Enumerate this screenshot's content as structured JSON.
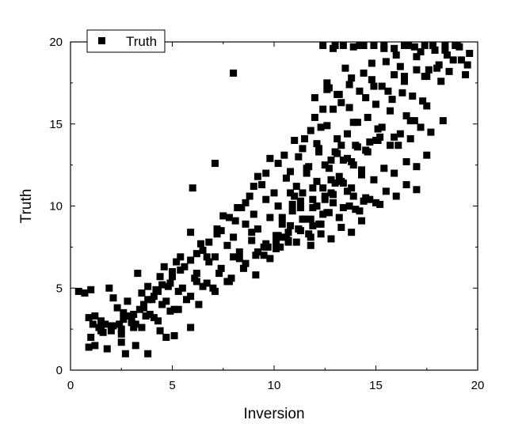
{
  "chart_data": {
    "type": "scatter",
    "title": "",
    "xlabel": "Inversion",
    "ylabel": "Truth",
    "xlim": [
      0,
      20
    ],
    "ylim": [
      0,
      20
    ],
    "xticks": [
      0,
      5,
      10,
      15,
      20
    ],
    "yticks": [
      0,
      5,
      10,
      15,
      20
    ],
    "grid": false,
    "legend_position": "top-left",
    "marker": "square",
    "color": "#000000",
    "series": [
      {
        "name": "Truth",
        "x": [
          0.4,
          0.7,
          0.9,
          1.0,
          1.1,
          1.2,
          1.4,
          1.5,
          1.7,
          1.9,
          2.0,
          2.1,
          2.3,
          2.5,
          2.6,
          2.8,
          3.0,
          3.1,
          3.3,
          3.5,
          3.6,
          3.8,
          4.0,
          4.2,
          4.4,
          4.6,
          4.8,
          5.0,
          5.2,
          5.4,
          5.9,
          6.0,
          8.0,
          7.1,
          5.9,
          5.1,
          4.7,
          2.7,
          3.2,
          3.8,
          1.2,
          0.9,
          1.8,
          2.5,
          4.4,
          5.3,
          6.2,
          6.4,
          6.7,
          7.0,
          7.2,
          7.5,
          7.8,
          8.1,
          8.3,
          8.6,
          8.9,
          9.2,
          9.5,
          9.8,
          10.1,
          10.4,
          10.7,
          11.0,
          11.3,
          11.6,
          11.9,
          12.2,
          12.5,
          12.8,
          13.1,
          13.4,
          13.7,
          14.0,
          14.3,
          14.6,
          14.9,
          15.2,
          15.5,
          15.8,
          16.1,
          16.4,
          16.7,
          17.0,
          17.3,
          17.6,
          17.9,
          18.2,
          18.5,
          18.8,
          19.1,
          19.4,
          19.6,
          12.6,
          13.0,
          13.5,
          14.2,
          14.8,
          15.4,
          16.0,
          16.6,
          17.2,
          17.8,
          18.4,
          19.0,
          19.5,
          12.4,
          12.7,
          13.2,
          13.8,
          14.4,
          15.0,
          15.6,
          16.2,
          16.8,
          17.4,
          18.0,
          11.5,
          12.0,
          12.3,
          12.9,
          13.3,
          13.9,
          14.5,
          15.1,
          15.7,
          16.3,
          16.9,
          17.5,
          10.5,
          11.0,
          11.4,
          11.8,
          12.1,
          12.6,
          13.0,
          13.6,
          14.1,
          14.7,
          15.3,
          15.9,
          16.5,
          9.0,
          9.6,
          10.2,
          10.8,
          11.2,
          11.7,
          12.2,
          12.8,
          13.3,
          13.9,
          14.5,
          15.0,
          8.2,
          8.8,
          9.4,
          10.0,
          10.6,
          11.1,
          11.6,
          12.1,
          12.7,
          13.2,
          13.8,
          14.3,
          7.2,
          7.8,
          8.4,
          9.0,
          9.6,
          10.2,
          10.8,
          11.3,
          11.9,
          12.5,
          13.0,
          13.6,
          6.2,
          6.8,
          7.4,
          8.0,
          8.6,
          9.2,
          9.8,
          10.4,
          10.9,
          11.5,
          12.1,
          12.6,
          5.4,
          5.9,
          6.5,
          7.1,
          7.7,
          8.3,
          8.9,
          9.5,
          10.1,
          10.7,
          11.2,
          11.8,
          4.5,
          5.0,
          5.6,
          6.2,
          6.8,
          7.4,
          8.0,
          8.6,
          9.2,
          9.8,
          10.3,
          3.8,
          4.3,
          4.9,
          5.5,
          6.1,
          6.7,
          7.3,
          7.9,
          8.5,
          9.1,
          3.1,
          3.6,
          4.1,
          4.7,
          5.3,
          5.9,
          6.5,
          7.1,
          7.7,
          2.4,
          2.9,
          3.4,
          3.9,
          4.5,
          5.1,
          5.7,
          6.3,
          1.6,
          2.1,
          2.6,
          3.2,
          3.7,
          4.3,
          4.9,
          1.0,
          1.5,
          2.0,
          2.5,
          3.0,
          3.5,
          4.1,
          12.4,
          12.9,
          13.4,
          13.9,
          14.4,
          14.9,
          15.4,
          15.9,
          16.4,
          16.9,
          17.4,
          17.9,
          18.4,
          18.9,
          12.5,
          13.1,
          13.6,
          14.1,
          14.6,
          15.1,
          15.7,
          16.2,
          16.7,
          17.2,
          17.7,
          18.3,
          12.8,
          13.3,
          13.8,
          14.3,
          14.9,
          15.4,
          15.9,
          16.5,
          17.0,
          17.5,
          14.0,
          14.5,
          15.0,
          15.5,
          16.0,
          16.5,
          17.0,
          12.2,
          12.7,
          13.2,
          13.7,
          14.2,
          14.7,
          15.2,
          11.8,
          12.3,
          12.8,
          13.3,
          13.8,
          14.3,
          11.4,
          11.9,
          12.4,
          12.9,
          13.4,
          13.9,
          14.4,
          10.9,
          11.4,
          11.9,
          12.4,
          12.9,
          13.4,
          10.3,
          10.8,
          11.3,
          11.8,
          12.3,
          9.7,
          10.2,
          10.7,
          11.2,
          11.7,
          9.1,
          9.6,
          10.1,
          10.6,
          11.1,
          12.0,
          12.6,
          13.1,
          13.7,
          14.2,
          14.8,
          15.3,
          15.9,
          16.4,
          17.0,
          17.5,
          18.1,
          18.6,
          19.2
        ],
        "y": [
          4.8,
          4.7,
          3.2,
          4.9,
          2.8,
          3.3,
          2.6,
          3.0,
          2.8,
          5.0,
          2.4,
          4.4,
          3.8,
          2.2,
          3.5,
          4.2,
          3.0,
          2.6,
          5.9,
          4.7,
          3.8,
          5.1,
          4.3,
          4.9,
          5.7,
          6.3,
          5.1,
          6.0,
          6.6,
          6.9,
          2.6,
          11.1,
          18.1,
          12.6,
          8.4,
          2.1,
          2.0,
          1.0,
          1.5,
          1.0,
          1.5,
          1.4,
          1.3,
          1.7,
          2.4,
          3.7,
          5.4,
          7.7,
          6.9,
          5.0,
          8.3,
          9.4,
          5.4,
          9.1,
          6.8,
          10.2,
          8.4,
          11.8,
          7.0,
          12.9,
          7.8,
          9.3,
          8.4,
          10.6,
          9.9,
          12.3,
          8.8,
          13.5,
          10.4,
          11.6,
          14.1,
          12.8,
          16.0,
          13.7,
          12.0,
          15.4,
          17.3,
          14.2,
          18.8,
          16.5,
          13.7,
          17.9,
          15.2,
          19.1,
          16.4,
          18.3,
          19.5,
          17.6,
          19.2,
          18.9,
          19.7,
          18.0,
          19.3,
          17.5,
          19.8,
          18.4,
          19.9,
          18.7,
          19.6,
          19.2,
          19.9,
          19.4,
          19.8,
          19.5,
          19.9,
          18.6,
          15.9,
          17.2,
          16.8,
          17.8,
          18.1,
          16.2,
          17.0,
          18.5,
          16.7,
          17.9,
          18.4,
          14.1,
          15.4,
          14.8,
          15.9,
          16.3,
          15.1,
          16.6,
          14.7,
          15.8,
          16.9,
          15.2,
          16.1,
          13.1,
          14.0,
          13.5,
          14.6,
          13.8,
          14.9,
          13.3,
          14.4,
          15.1,
          13.9,
          14.8,
          14.2,
          15.5,
          11.2,
          12.0,
          12.6,
          12.1,
          13.0,
          12.4,
          13.3,
          12.8,
          13.7,
          12.5,
          13.4,
          14.0,
          9.9,
          10.6,
          11.3,
          10.8,
          11.7,
          11.2,
          12.0,
          11.5,
          12.3,
          11.8,
          12.7,
          12.2,
          8.6,
          9.3,
          9.9,
          9.5,
          10.4,
          10.0,
          10.8,
          10.3,
          11.1,
          10.6,
          11.4,
          10.9,
          7.1,
          7.8,
          8.5,
          8.1,
          8.9,
          8.6,
          9.3,
          8.9,
          9.7,
          9.2,
          10.0,
          9.6,
          6.1,
          6.7,
          7.3,
          6.9,
          7.6,
          7.2,
          7.9,
          7.5,
          8.2,
          7.8,
          8.6,
          8.1,
          5.2,
          5.7,
          6.3,
          5.9,
          6.6,
          6.2,
          6.9,
          6.5,
          7.2,
          6.8,
          7.5,
          4.3,
          4.8,
          5.3,
          5.0,
          5.6,
          5.3,
          5.9,
          5.6,
          6.2,
          5.8,
          3.4,
          4.0,
          4.5,
          4.2,
          4.8,
          4.5,
          5.1,
          4.8,
          5.4,
          2.8,
          3.3,
          3.7,
          3.4,
          4.0,
          3.7,
          4.3,
          4.0,
          2.3,
          2.7,
          3.1,
          2.8,
          3.3,
          3.0,
          3.6,
          2.0,
          2.4,
          2.7,
          2.5,
          2.9,
          2.6,
          3.2,
          19.9,
          19.6,
          19.9,
          19.7,
          19.9,
          19.8,
          19.9,
          19.6,
          19.9,
          19.7,
          19.9,
          19.5,
          19.8,
          19.9,
          12.5,
          13.2,
          12.9,
          13.6,
          13.3,
          14.0,
          13.7,
          14.4,
          14.1,
          14.8,
          14.5,
          15.2,
          10.8,
          11.5,
          11.1,
          11.9,
          11.6,
          12.3,
          12.0,
          12.7,
          12.4,
          13.1,
          9.8,
          10.5,
          10.2,
          10.9,
          10.6,
          11.3,
          11.0,
          8.9,
          9.6,
          9.3,
          10.0,
          9.7,
          10.4,
          10.1,
          7.6,
          8.3,
          8.0,
          8.7,
          8.4,
          9.1,
          9.2,
          9.9,
          9.5,
          10.2,
          9.9,
          10.6,
          10.3,
          10.1,
          10.8,
          10.4,
          11.1,
          10.7,
          11.4,
          8.1,
          8.8,
          8.5,
          9.2,
          8.9,
          7.5,
          8.2,
          7.9,
          8.6,
          8.3,
          7.0,
          7.7,
          7.4,
          8.1,
          7.8,
          16.6,
          17.1,
          16.8,
          17.4,
          17.0,
          17.7,
          17.3,
          18.0,
          17.6,
          18.3,
          17.9,
          18.6,
          18.2,
          18.9
        ]
      }
    ]
  }
}
